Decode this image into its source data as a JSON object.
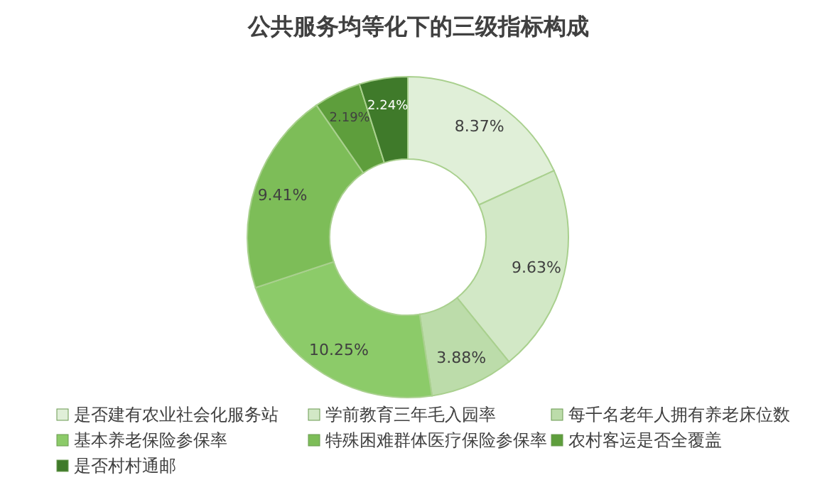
{
  "chart_data": {
    "type": "donut",
    "title": "公共服务均等化下的三级指标构成",
    "categories": [
      "是否建有农业社会化服务站",
      "学前教育三年毛入园率",
      "每千名老年人拥有养老床位数",
      "基本养老保险参保率",
      "特殊困难群体医疗保险参保率",
      "农村客运是否全覆盖",
      "是否村村通邮"
    ],
    "values": [
      8.37,
      9.63,
      3.88,
      10.25,
      9.41,
      2.19,
      2.24
    ],
    "value_labels": [
      "8.37%",
      "9.63%",
      "3.88%",
      "10.25%",
      "9.41%",
      "2.19%",
      "2.24%"
    ],
    "colors": [
      "#e0efd8",
      "#d2e8c6",
      "#bcdcaa",
      "#8ccb69",
      "#7dbd58",
      "#5e9e3c",
      "#3f7a2a"
    ],
    "legend": "bottom"
  }
}
